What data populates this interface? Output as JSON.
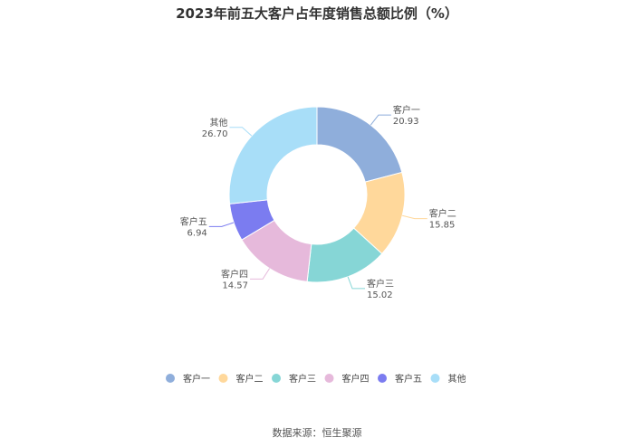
{
  "chart_data": {
    "type": "pie",
    "title": "2023年前五大客户占年度销售总额比例（%）",
    "categories": [
      "客户一",
      "客户二",
      "客户三",
      "客户四",
      "客户五",
      "其他"
    ],
    "values": [
      20.93,
      15.85,
      15.02,
      14.57,
      6.94,
      26.7
    ],
    "value_labels": [
      "20.93",
      "15.85",
      "15.02",
      "14.57",
      "6.94",
      "26.70"
    ],
    "colors": [
      "#8FAEDB",
      "#FFD89B",
      "#86D6D6",
      "#E6B9DB",
      "#7B7CF0",
      "#A8DEF8"
    ],
    "donut": true,
    "legend_position": "bottom"
  },
  "footer": {
    "source": "数据来源：恒生聚源"
  }
}
